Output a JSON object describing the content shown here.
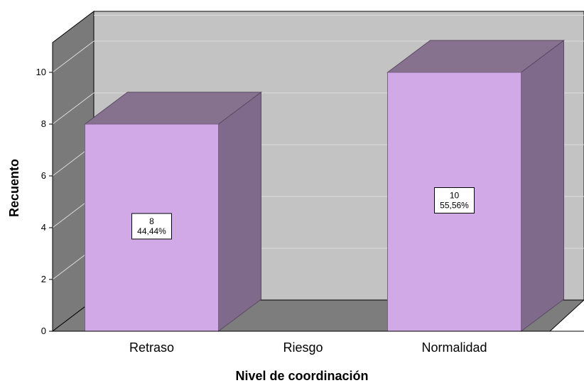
{
  "chart_data": {
    "type": "bar",
    "style": "3d",
    "categories": [
      "Retraso",
      "Riesgo",
      "Normalidad"
    ],
    "values": [
      8,
      0,
      10
    ],
    "data_labels": [
      {
        "count": "8",
        "percent": "44,44%"
      },
      {
        "count": "",
        "percent": ""
      },
      {
        "count": "10",
        "percent": "55,56%"
      }
    ],
    "yticks": [
      "0",
      "2",
      "4",
      "6",
      "8",
      "10"
    ],
    "ylim": [
      0,
      11
    ],
    "xlabel": "Nivel de coordinación",
    "ylabel": "Recuento",
    "grid": true,
    "colors": {
      "bar_front": "#d1a9e6",
      "bar_top": "#86718f",
      "bar_side": "#7f6a8c",
      "back_wall": "#c3c3c3",
      "left_wall": "#7a7a7a",
      "floor": "#7d7d7d",
      "gridline": "#dcdcdc"
    }
  }
}
